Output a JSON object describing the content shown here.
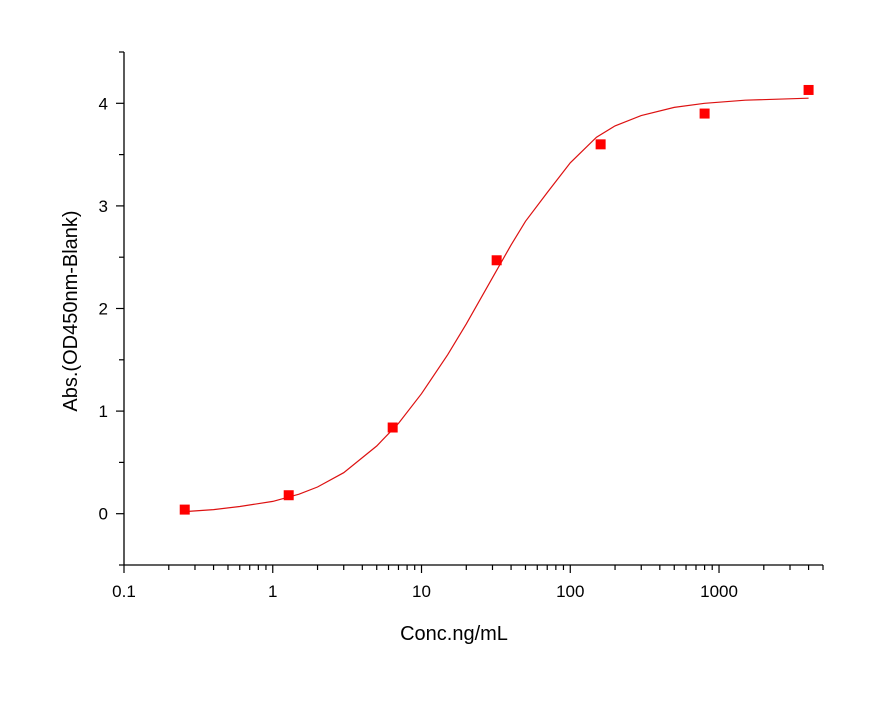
{
  "chart_data": {
    "type": "scatter",
    "title": "",
    "xlabel": "Conc.ng/mL",
    "ylabel": "Abs.(OD450nm-Blank)",
    "x_scale": "log",
    "xlim": [
      0.1,
      5000
    ],
    "ylim": [
      -0.5,
      4.5
    ],
    "x_ticks": [
      {
        "value": 0.1,
        "label": "0.1"
      },
      {
        "value": 1,
        "label": "1"
      },
      {
        "value": 10,
        "label": "10"
      },
      {
        "value": 100,
        "label": "100"
      },
      {
        "value": 1000,
        "label": "1000"
      }
    ],
    "y_ticks": [
      {
        "value": 0,
        "label": "0"
      },
      {
        "value": 1,
        "label": "1"
      },
      {
        "value": 2,
        "label": "2"
      },
      {
        "value": 3,
        "label": "3"
      },
      {
        "value": 4,
        "label": "4"
      }
    ],
    "grid": false,
    "legend": "none",
    "series": [
      {
        "kind": "points",
        "marker": "square",
        "color": "#ff0000",
        "x": [
          0.256,
          1.28,
          6.4,
          32,
          160,
          800,
          4000
        ],
        "y": [
          0.04,
          0.18,
          0.84,
          2.47,
          3.6,
          3.9,
          4.13
        ]
      },
      {
        "kind": "fit-curve",
        "color": "#dd1111",
        "x": [
          0.256,
          0.4,
          0.6,
          1.0,
          1.5,
          2.0,
          3.0,
          5.0,
          7.0,
          10,
          15,
          20,
          30,
          40,
          50,
          70,
          100,
          150,
          200,
          300,
          500,
          800,
          1500,
          4000
        ],
        "y": [
          0.02,
          0.04,
          0.07,
          0.12,
          0.19,
          0.26,
          0.4,
          0.66,
          0.88,
          1.17,
          1.55,
          1.85,
          2.3,
          2.62,
          2.85,
          3.13,
          3.42,
          3.67,
          3.78,
          3.88,
          3.96,
          4.0,
          4.03,
          4.05
        ]
      }
    ]
  }
}
